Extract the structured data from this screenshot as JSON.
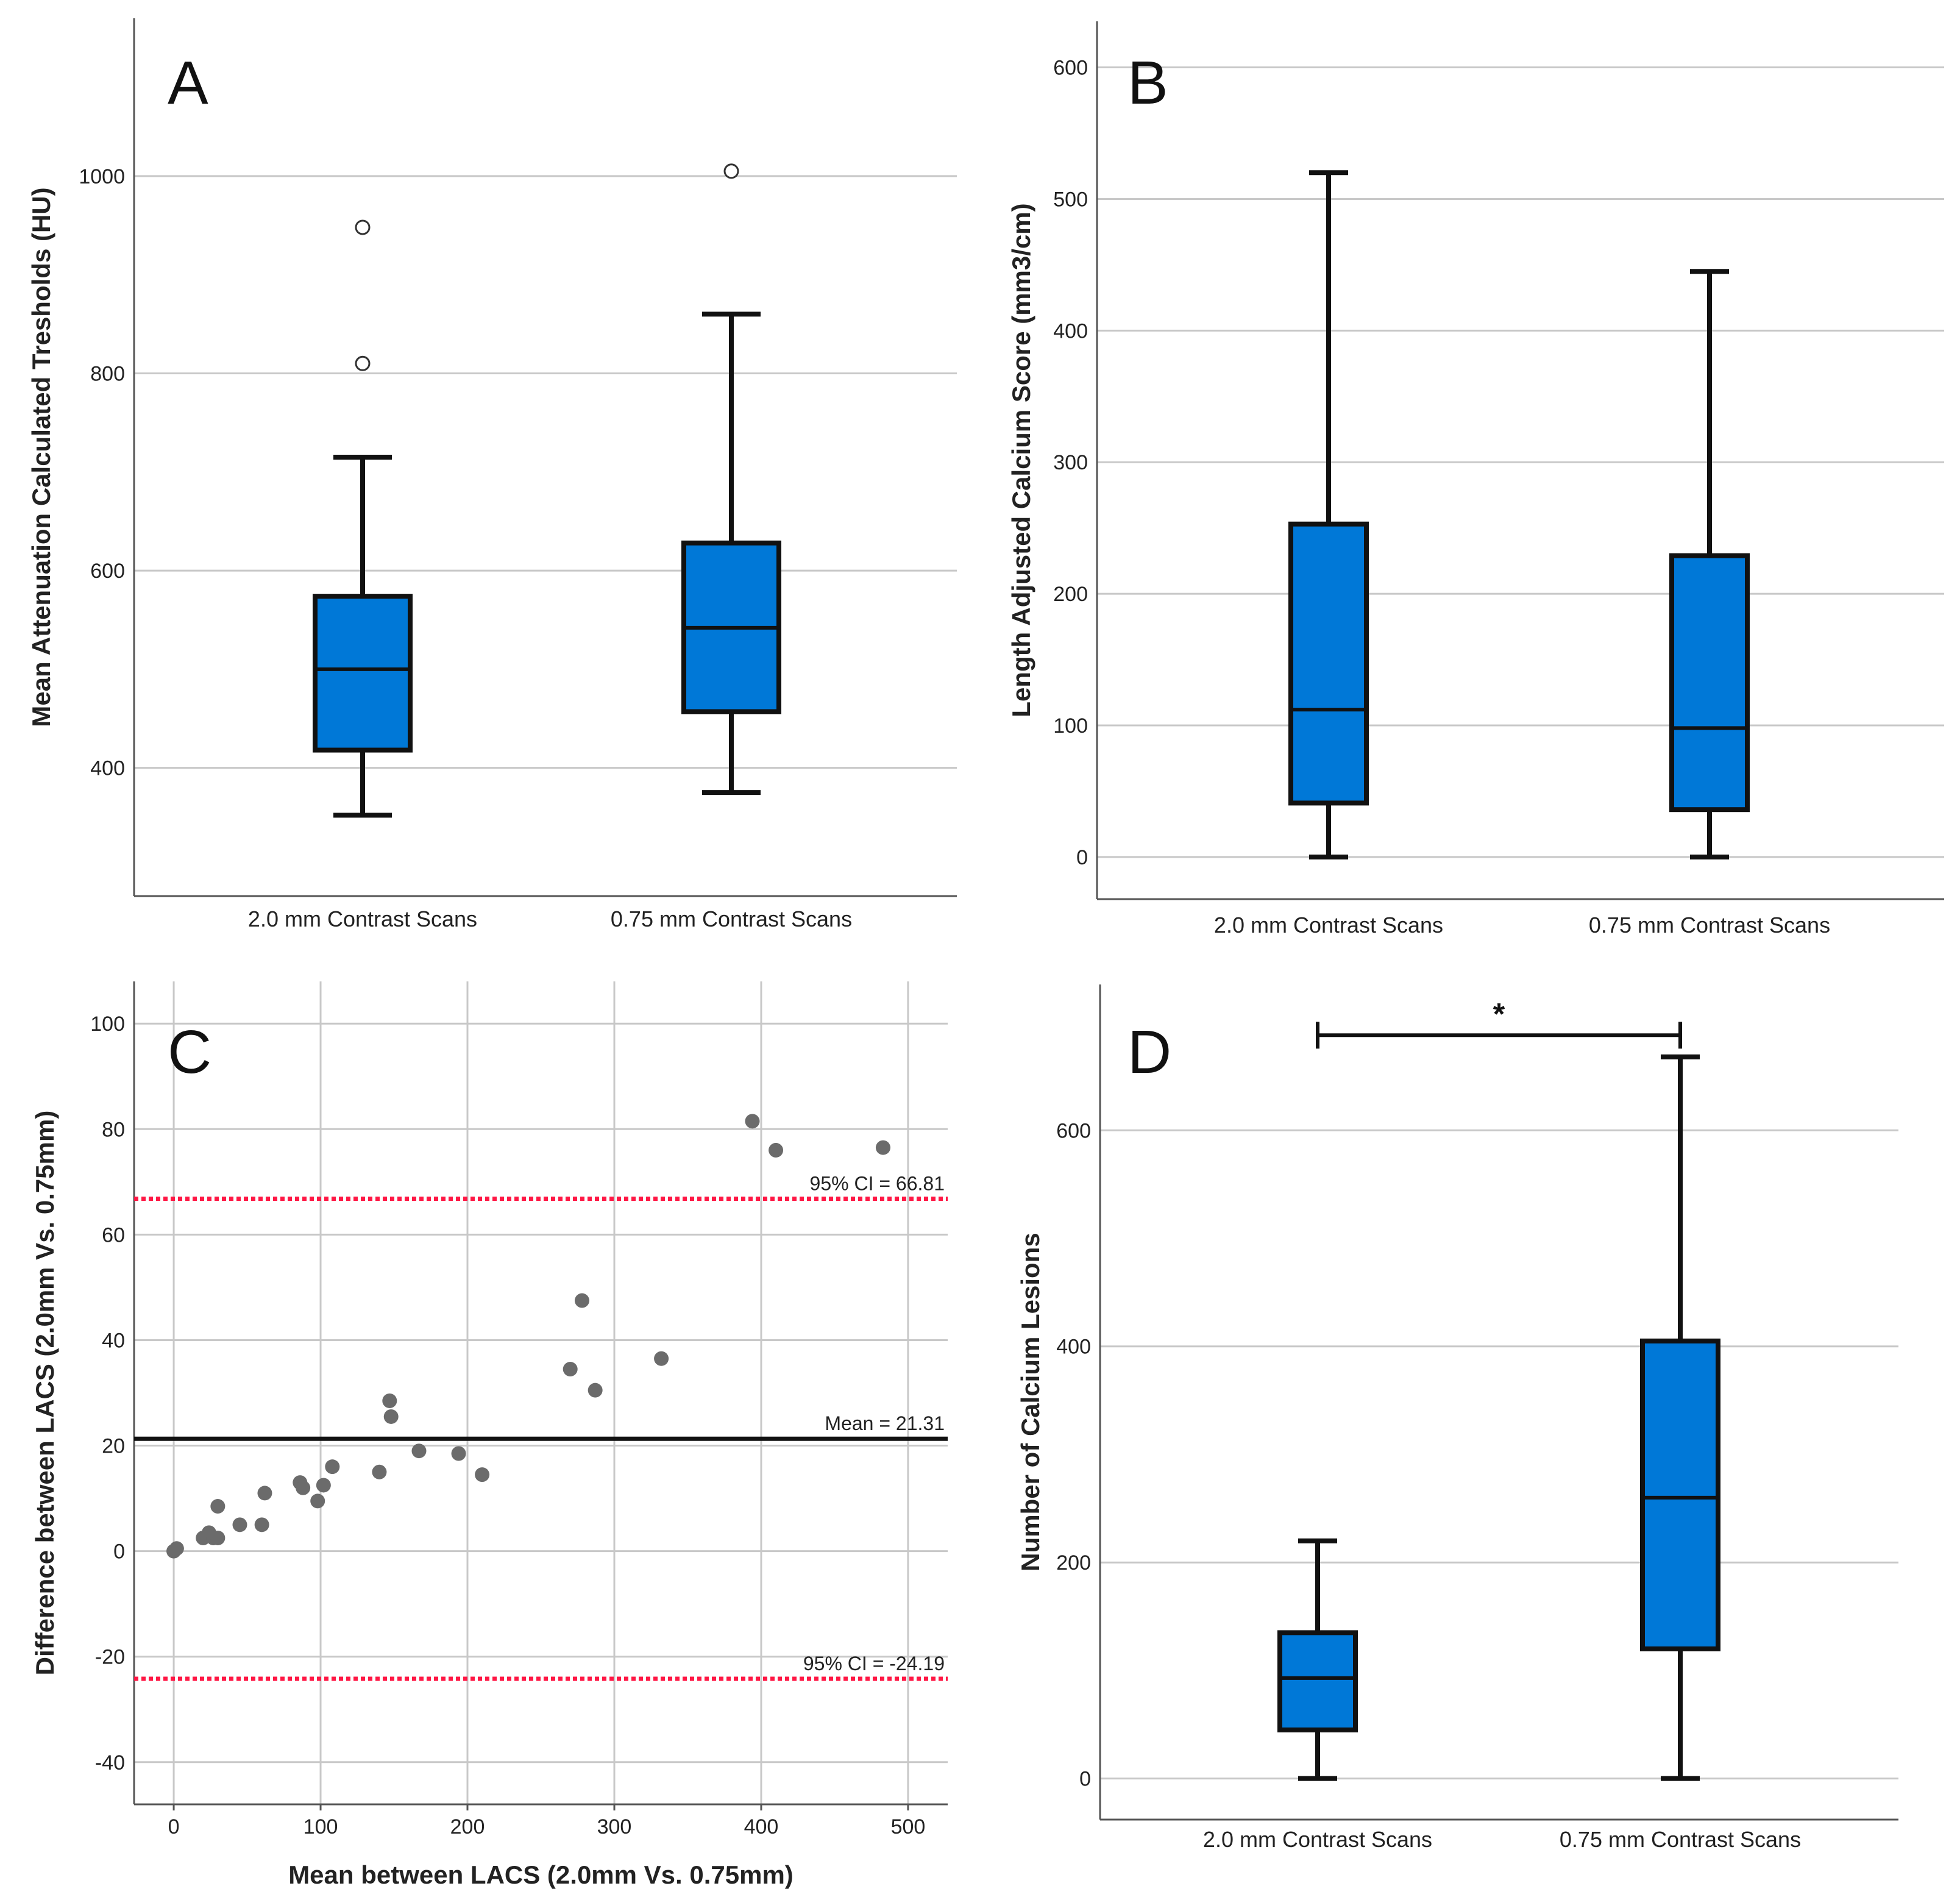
{
  "colors": {
    "box_fill": "#0078D7",
    "outline": "#111111",
    "grid": "#c8c8c8",
    "axis": "#555555",
    "point": "#6b6b6b",
    "ci_line": "#ff1744",
    "mean_line": "#111111"
  },
  "chart_data": [
    {
      "panel": "A",
      "type": "box",
      "ylabel": "Mean Attenuation Calculated Tresholds (HU)",
      "ylim": [
        270,
        1160
      ],
      "yticks": [
        400,
        600,
        800,
        1000
      ],
      "categories": [
        "2.0 mm Contrast Scans",
        "0.75 mm Contrast Scans"
      ],
      "boxes": [
        {
          "min": 352,
          "q1": 418,
          "median": 500,
          "q3": 574,
          "max": 715,
          "outliers": [
            810,
            948
          ]
        },
        {
          "min": 375,
          "q1": 457,
          "median": 542,
          "q3": 628,
          "max": 860,
          "outliers": [
            1005
          ]
        }
      ]
    },
    {
      "panel": "B",
      "type": "box",
      "ylabel": "Length Adjusted Calcium Score (mm3/cm)",
      "ylim": [
        -32,
        635
      ],
      "yticks": [
        0,
        100,
        200,
        300,
        400,
        500,
        600
      ],
      "categories": [
        "2.0 mm Contrast Scans",
        "0.75 mm Contrast Scans"
      ],
      "boxes": [
        {
          "min": 0,
          "q1": 41,
          "median": 112,
          "q3": 253,
          "max": 520,
          "outliers": []
        },
        {
          "min": 0,
          "q1": 36,
          "median": 98,
          "q3": 229,
          "max": 445,
          "outliers": []
        }
      ]
    },
    {
      "panel": "C",
      "type": "scatter",
      "xlabel": "Mean between LACS (2.0mm Vs. 0.75mm)",
      "ylabel": "Difference between LACS (2.0mm Vs. 0.75mm)",
      "xlim": [
        -27,
        527
      ],
      "ylim": [
        -48,
        108
      ],
      "xticks": [
        0,
        100,
        200,
        300,
        400,
        500
      ],
      "yticks": [
        -40,
        -20,
        0,
        20,
        40,
        60,
        80,
        100
      ],
      "x": [
        0,
        2,
        20,
        24,
        27,
        30,
        30,
        45,
        60,
        62,
        86,
        88,
        98,
        102,
        108,
        140,
        147,
        148,
        167,
        194,
        210,
        270,
        278,
        287,
        332,
        394,
        410,
        483
      ],
      "y": [
        0,
        0.5,
        2.5,
        3.5,
        2.5,
        8.5,
        2.5,
        5,
        5,
        11,
        13,
        12,
        9.5,
        12.5,
        16,
        15,
        28.5,
        25.5,
        19,
        18.5,
        14.5,
        34.5,
        47.5,
        30.5,
        36.5,
        81.5,
        76,
        76.5
      ],
      "reference_lines": [
        {
          "value": 66.81,
          "label": "95% CI = 66.81",
          "style": "dotted"
        },
        {
          "value": 21.31,
          "label": "Mean = 21.31",
          "style": "solid"
        },
        {
          "value": -24.19,
          "label": "95% CI = -24.19",
          "style": "dotted"
        }
      ]
    },
    {
      "panel": "D",
      "type": "box",
      "ylabel": "Number of Calcium Lesions",
      "ylim": [
        -38,
        735
      ],
      "yticks": [
        0,
        200,
        400,
        600
      ],
      "categories": [
        "2.0 mm Contrast Scans",
        "0.75 mm Contrast Scans"
      ],
      "boxes": [
        {
          "min": 0,
          "q1": 45,
          "median": 93,
          "q3": 135,
          "max": 220,
          "outliers": []
        },
        {
          "min": 0,
          "q1": 120,
          "median": 260,
          "q3": 405,
          "max": 668,
          "outliers": []
        }
      ],
      "significance": {
        "label": "*",
        "value": 688
      }
    }
  ]
}
